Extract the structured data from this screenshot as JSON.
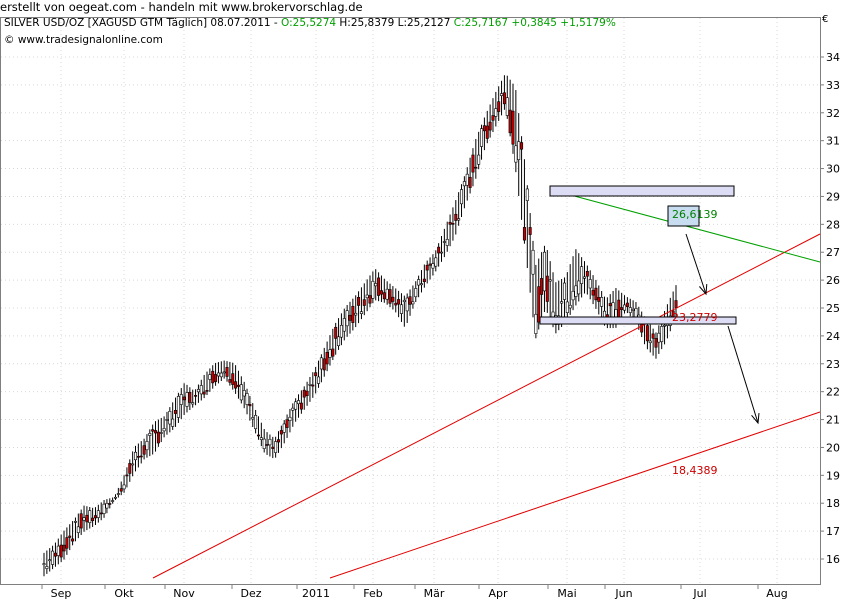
{
  "caption": "erstellt von oegeat.com - handeln mit www.brokervorschlag.de",
  "header": {
    "symbol": "SILVER USD/OZ [XAGUSD GTM  Täglich] 08.07.2011 - ",
    "open": "O:25,5274",
    "high": "H:25,8379",
    "low": "L:25,2127",
    "close": "C:25,7167",
    "change": "+0,3845",
    "change_pct": "+1,5179%",
    "copyright": "© www.tradesignalonline.com",
    "corner_glyph": "€",
    "change_color": "#00a000"
  },
  "chart_data": {
    "type": "candlestick",
    "x_tick_labels": [
      "Sep",
      "Okt",
      "Nov",
      "Dez",
      "2011",
      "Feb",
      "Mär",
      "Apr",
      "Mai",
      "Jun",
      "Jul",
      "Aug"
    ],
    "y_tick_labels": [
      "16",
      "17",
      "18",
      "19",
      "20",
      "21",
      "22",
      "23",
      "24",
      "25",
      "26",
      "27",
      "28",
      "29",
      "30",
      "31",
      "32",
      "33",
      "34"
    ],
    "ylim": [
      15.5,
      34.5
    ],
    "annotations": [
      {
        "text": "26,6139",
        "color": "#008000"
      },
      {
        "text": "23,2779",
        "color": "#cc0000"
      },
      {
        "text": "18,4389",
        "color": "#cc0000"
      }
    ],
    "trend_points": [
      [
        15.5,
        16.1
      ],
      [
        15.8,
        16.4
      ],
      [
        16.1,
        16.9
      ],
      [
        16.7,
        17.3
      ],
      [
        17.1,
        17.8
      ],
      [
        17.3,
        17.7
      ],
      [
        17.6,
        18.0
      ],
      [
        18.2,
        18.1
      ],
      [
        18.5,
        18.9
      ],
      [
        19.2,
        19.9
      ],
      [
        19.7,
        20.2
      ],
      [
        19.9,
        20.8
      ],
      [
        20.5,
        21.0
      ],
      [
        20.8,
        21.6
      ],
      [
        21.3,
        22.2
      ],
      [
        21.6,
        21.9
      ],
      [
        21.9,
        22.5
      ],
      [
        22.3,
        22.9
      ],
      [
        22.6,
        23.0
      ],
      [
        22.1,
        22.9
      ],
      [
        21.5,
        22.2
      ],
      [
        20.7,
        21.3
      ],
      [
        19.9,
        20.5
      ],
      [
        19.7,
        20.2
      ],
      [
        20.3,
        20.9
      ],
      [
        21.0,
        21.6
      ],
      [
        21.5,
        22.1
      ],
      [
        22.0,
        22.7
      ],
      [
        22.7,
        23.5
      ],
      [
        23.4,
        24.3
      ],
      [
        24.0,
        24.9
      ],
      [
        24.4,
        25.3
      ],
      [
        24.9,
        25.8
      ],
      [
        25.4,
        26.3
      ],
      [
        25.3,
        25.9
      ],
      [
        25.0,
        25.6
      ],
      [
        24.4,
        25.3
      ],
      [
        25.3,
        25.8
      ],
      [
        25.9,
        26.5
      ],
      [
        26.4,
        26.9
      ],
      [
        27.0,
        27.8
      ],
      [
        27.7,
        28.7
      ],
      [
        28.8,
        29.7
      ],
      [
        29.7,
        30.9
      ],
      [
        30.9,
        31.8
      ],
      [
        31.6,
        32.6
      ],
      [
        32.3,
        33.3
      ],
      [
        30.1,
        32.8
      ],
      [
        27.1,
        29.9
      ],
      [
        24.0,
        26.4
      ],
      [
        25.1,
        27.2
      ],
      [
        24.2,
        25.8
      ],
      [
        24.6,
        26.0
      ],
      [
        25.2,
        27.0
      ],
      [
        25.7,
        26.5
      ],
      [
        25.1,
        25.9
      ],
      [
        24.4,
        25.2
      ],
      [
        24.4,
        25.6
      ],
      [
        25.0,
        25.3
      ],
      [
        24.6,
        25.1
      ],
      [
        23.7,
        24.5
      ],
      [
        23.3,
        24.0
      ],
      [
        23.9,
        24.9
      ],
      [
        24.8,
        25.7
      ]
    ]
  }
}
